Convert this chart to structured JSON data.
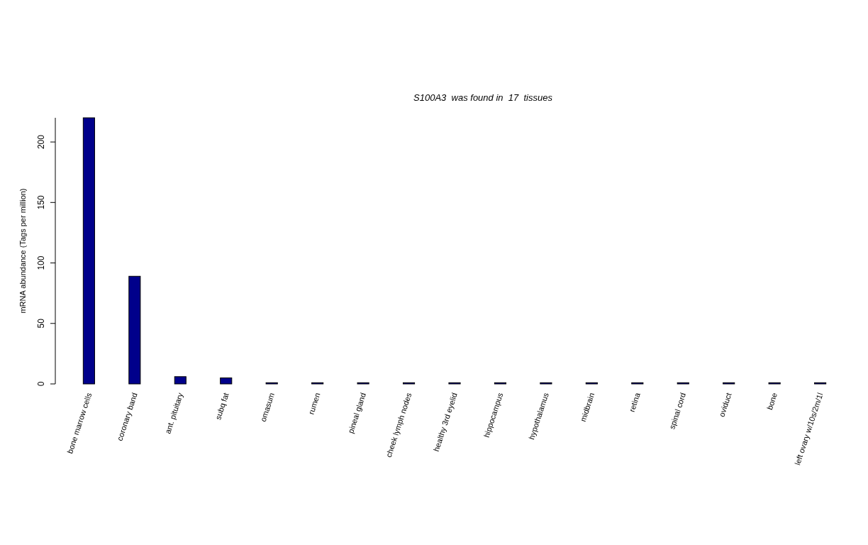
{
  "chart_data": {
    "type": "bar",
    "title": "S100A3  was found in  17  tissues",
    "ylabel": "mRNA abundance (Tags per million)",
    "categories": [
      "bone marrow cells",
      "coronary band",
      "ant. pituitary",
      "subq fat",
      "omasum",
      "rumen",
      "pineal gland",
      "cheek lymph nodes",
      "healthy 3rd eyelid",
      "hippocampus",
      "hypothalamus",
      "midbrain",
      "retina",
      "spinal cord",
      "oviduct",
      "bone",
      "left ovary w/10s/2m/1l"
    ],
    "values": [
      220,
      89,
      6,
      5,
      1,
      1,
      1,
      1,
      1,
      1,
      1,
      1,
      1,
      1,
      1,
      1,
      1
    ],
    "color": "#00008b",
    "ylim": [
      0,
      220
    ],
    "yticks": [
      0,
      50,
      100,
      150,
      200
    ],
    "grid": false
  }
}
